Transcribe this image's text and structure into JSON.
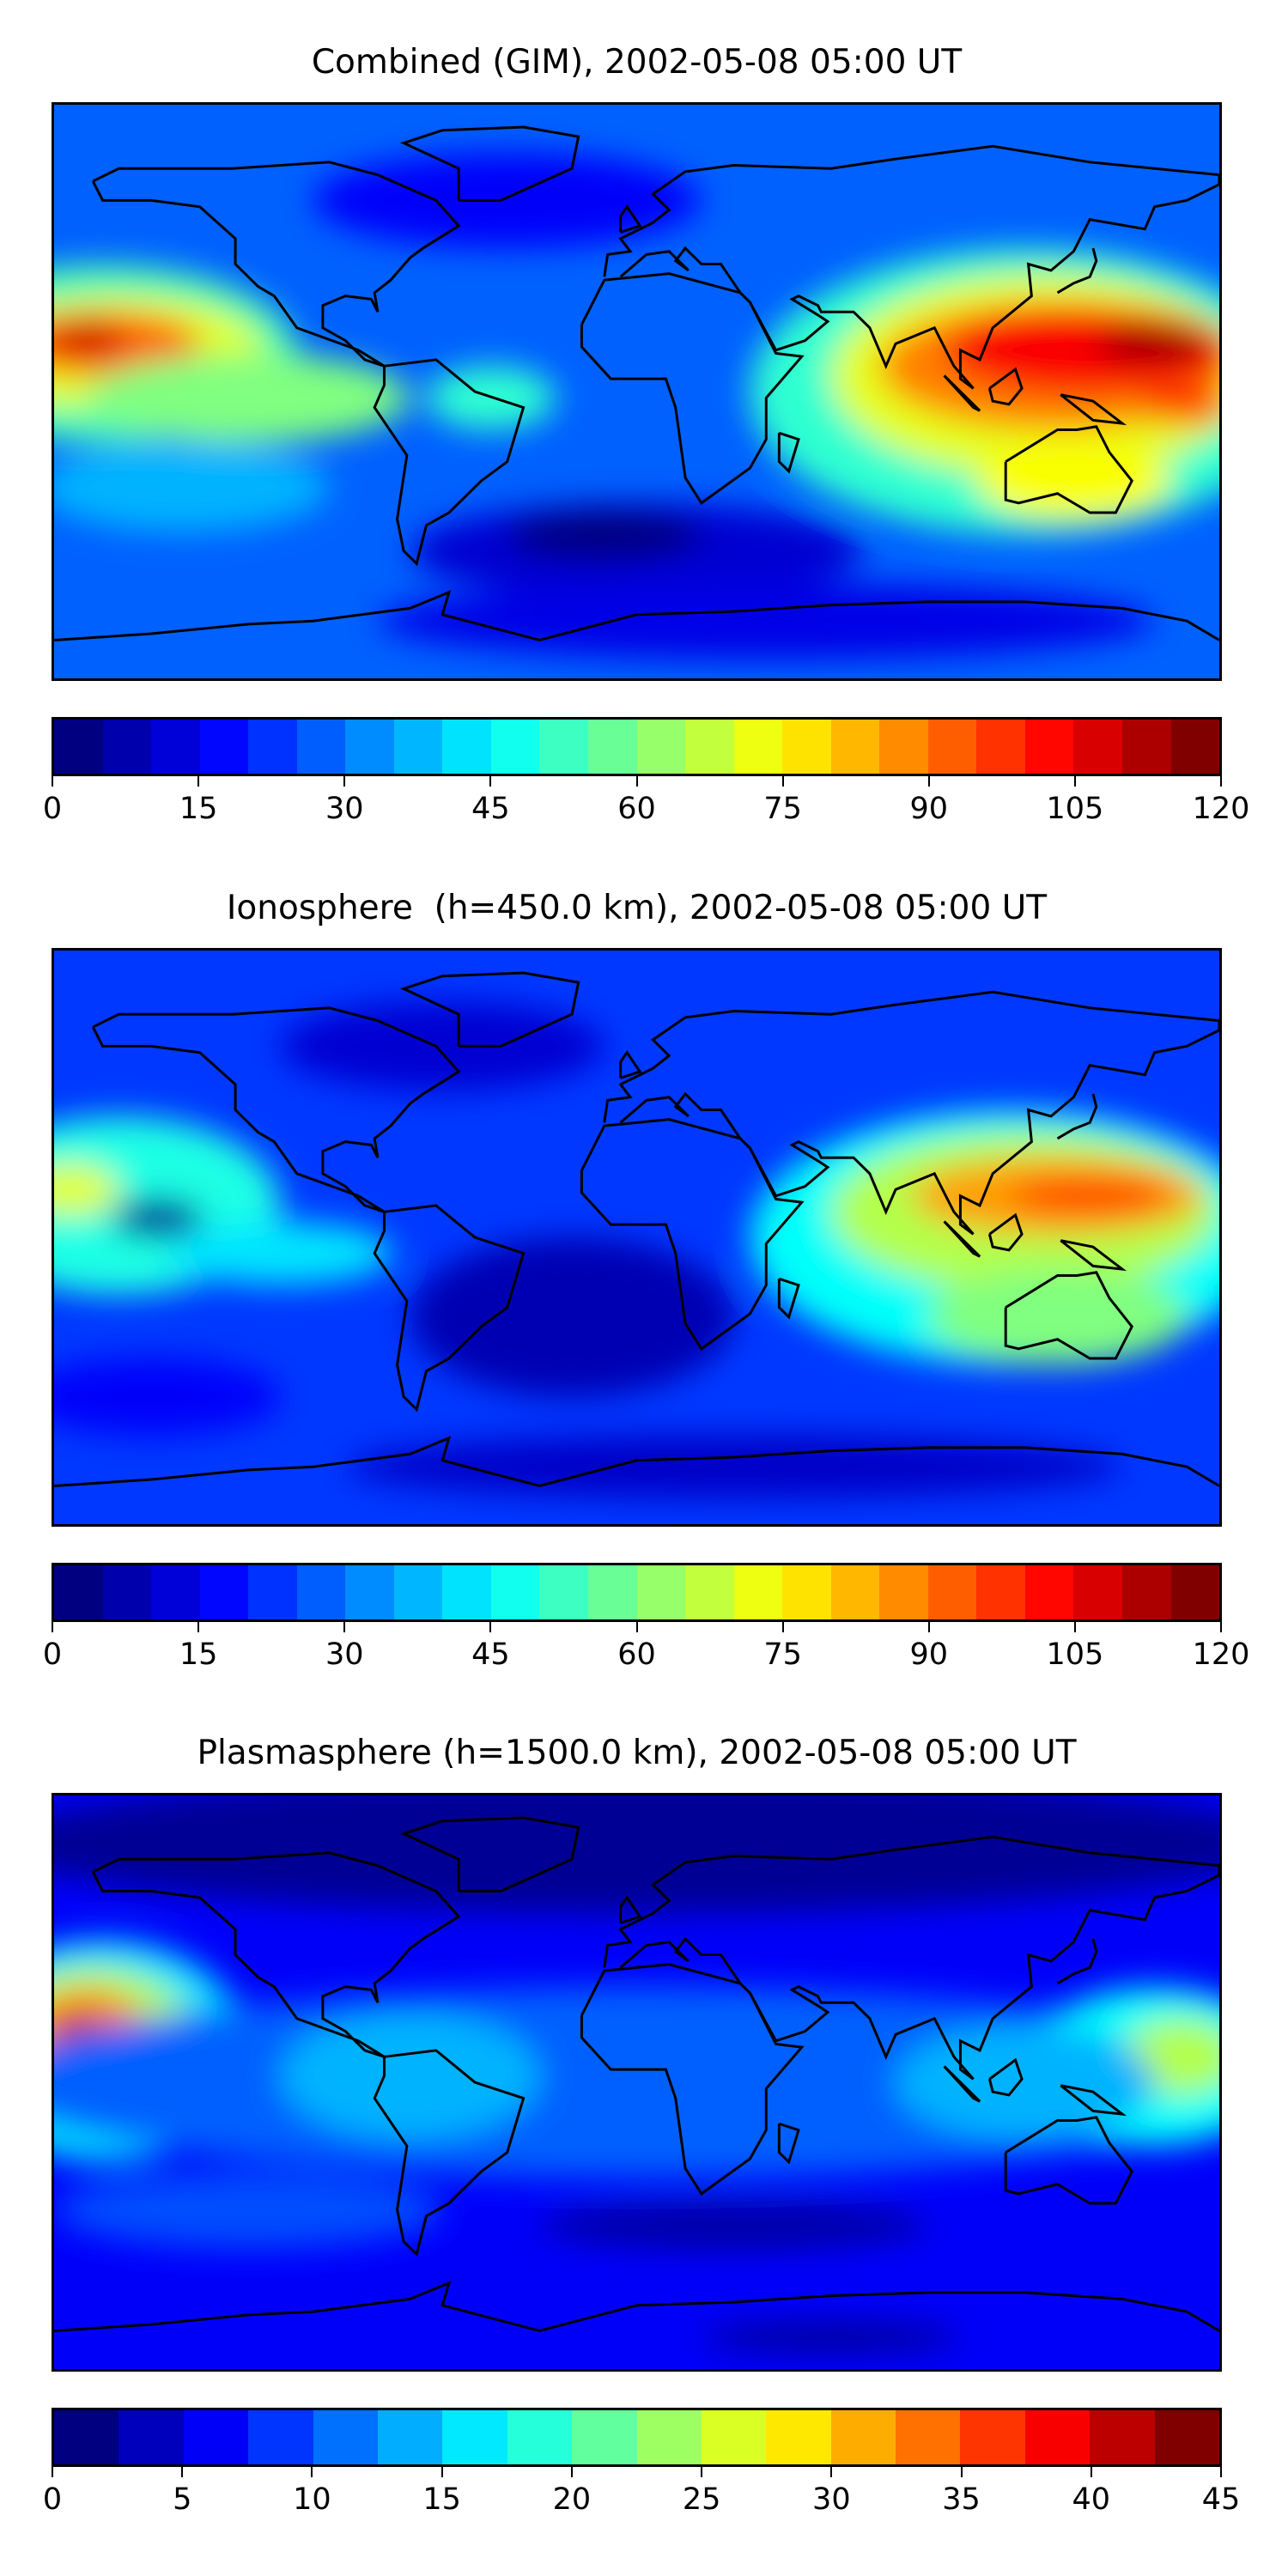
{
  "chart_data": [
    {
      "type": "heatmap",
      "title": "Combined (GIM), 2002-05-08 05:00 UT",
      "projection": "global map",
      "colormap": "jet",
      "vmin": 0,
      "vmax": 120,
      "level_step": 5,
      "colorbar_ticks": [
        "0",
        "15",
        "30",
        "45",
        "60",
        "75",
        "90",
        "105",
        "120"
      ],
      "features": {
        "max_regions": [
          "equatorial Pacific near 170W (~105-110)",
          "East Asia / western Pacific (~110-120)"
        ],
        "min_regions": [
          "South Atlantic (~0-5)"
        ]
      }
    },
    {
      "type": "heatmap",
      "title": "Ionosphere  (h=450.0 km), 2002-05-08 05:00 UT",
      "projection": "global map",
      "colormap": "jet",
      "vmin": 0,
      "vmax": 120,
      "level_step": 5,
      "colorbar_ticks": [
        "0",
        "15",
        "30",
        "45",
        "60",
        "75",
        "90",
        "105",
        "120"
      ],
      "features": {
        "max_regions": [
          "South China Sea / western Pacific (~90-95)"
        ],
        "min_regions": [
          "Atlantic (~0-5)",
          "eastern Pacific near 150W (~5)"
        ]
      }
    },
    {
      "type": "heatmap",
      "title": "Plasmasphere (h=1500.0 km), 2002-05-08 05:00 UT",
      "projection": "global map",
      "colormap": "jet",
      "vmin": 0,
      "vmax": 45,
      "level_step": 2.5,
      "colorbar_ticks": [
        "0",
        "5",
        "10",
        "15",
        "20",
        "25",
        "30",
        "35",
        "40",
        "45"
      ],
      "features": {
        "max_regions": [
          "central Pacific near 170W 15N (~42-45)",
          "western Pacific near 170E (~30)"
        ],
        "min_regions": [
          "high latitudes (~0-2.5)"
        ]
      }
    }
  ]
}
